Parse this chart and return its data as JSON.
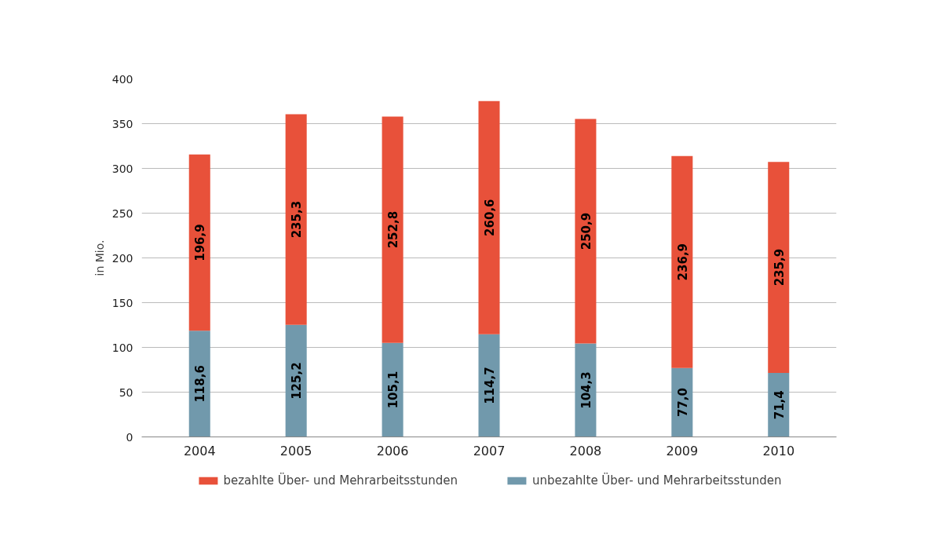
{
  "chart_data": {
    "type": "bar",
    "stacked": true,
    "ylabel": "in Mio.",
    "categories": [
      "2004",
      "2005",
      "2006",
      "2007",
      "2008",
      "2009",
      "2010"
    ],
    "series": [
      {
        "name": "unbezahlte Über- und Mehrarbeitsstunden",
        "color": "#7199ac",
        "values": [
          118.6,
          125.2,
          105.1,
          114.7,
          104.3,
          77.0,
          71.4
        ],
        "value_labels": [
          "118,6",
          "125,2",
          "105,1",
          "114,7",
          "104,3",
          "77,0",
          "71,4"
        ]
      },
      {
        "name": "bezahlte Über- und Mehrarbeitsstunden",
        "color": "#e8513a",
        "values": [
          196.9,
          235.3,
          252.8,
          260.6,
          250.9,
          236.9,
          235.9
        ],
        "value_labels": [
          "196,9",
          "235,3",
          "252,8",
          "260,6",
          "250,9",
          "236,9",
          "235,9"
        ]
      }
    ],
    "ylim": [
      0,
      400
    ],
    "yticks": [
      0,
      50,
      100,
      150,
      200,
      250,
      300,
      350,
      400
    ],
    "grid": "y",
    "legend": "bottom"
  }
}
